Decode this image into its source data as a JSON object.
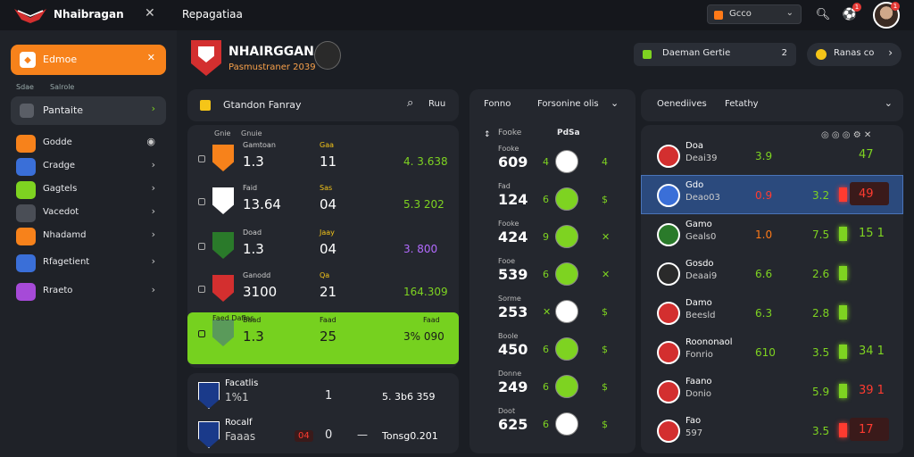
{
  "topbar": {
    "app_title": "Nhaibragan",
    "close_icon": "✕",
    "tab": "Repagatiaa",
    "select_value": "Gcco",
    "notif_badge": "1",
    "alert_badge": "1"
  },
  "sidebar": {
    "primary_label": "Edmoe",
    "section_col1": "Sdae",
    "section_col2": "Salrole",
    "active_label": "Pantaite",
    "items": [
      {
        "label": "Godde",
        "icon": "eye-icon",
        "color": "#f7821b"
      },
      {
        "label": "Cradge",
        "color": "#3a6fd8"
      },
      {
        "label": "Gagtels",
        "color": "#7ed321"
      },
      {
        "label": "Vacedot",
        "color": "#4a4e56"
      },
      {
        "label": "Nhadamd",
        "color": "#f7821b"
      },
      {
        "label": "Rfagetient",
        "color": "#3a6fd8"
      },
      {
        "label": "Rraeto",
        "color": "#a64ad8"
      }
    ]
  },
  "header": {
    "club_title": "NHAIRGGANA",
    "club_subtitle": "Pasmustraner 2039",
    "pill1": "Daeman Gertie",
    "pill1_num": "2",
    "pill2": "Ranas co"
  },
  "panel1": {
    "title": "Gtandon Fanray",
    "search_label": "Ruu",
    "head_col1": "Gnie",
    "head_col2": "Gnuie",
    "rows": [
      {
        "tag": "Gamtoan",
        "score": "1.3",
        "mid_label": "Gaa",
        "mid": "11",
        "right": "4. 3.638",
        "right_color": "#7ed321",
        "cr1": "#f7821b",
        "cr2": "#111"
      },
      {
        "tag": "Faid",
        "score": "13.64",
        "mid_label": "Sas",
        "mid": "04",
        "right": "5.3 202",
        "right_color": "#7ed321",
        "cr1": "#fff",
        "cr2": "#111"
      },
      {
        "tag": "Doad",
        "score": "1.3",
        "mid_label": "Jaay",
        "mid": "04",
        "right": "3. 800",
        "right_color": "#b36bff",
        "cr1": "#2a7a2a",
        "cr2": "#111"
      },
      {
        "tag": "Ganodd",
        "score": "3100",
        "mid_label": "Qa",
        "mid": "21",
        "right": "164.309",
        "right_color": "#7ed321",
        "cr1": "#d32f2f",
        "cr2": "#111"
      },
      {
        "tag": "Baad",
        "score": "1.3",
        "mid_label": "Faad",
        "mid": "25",
        "right": "3% 090",
        "right_color": "#1a1a1a",
        "cr1": "#5a9a5a",
        "cr2": "#111",
        "head": "Faed Daflas",
        "head_right": "Faad"
      },
      {
        "tag": "Facatlis",
        "score": "1%1",
        "mid_label": "",
        "mid": "1",
        "right": "5. 3b6 359",
        "right_color": "#e8e9ec",
        "cr1": "#fff",
        "cr2": "#1a3a8a"
      },
      {
        "tag": "Rocalf",
        "score": "Faaas",
        "mid_label": "",
        "mid": "0",
        "right": "Tonsg0.201",
        "right_color": "#e8e9ec",
        "cr1": "#fff",
        "cr2": "#1a3a8a",
        "red_tag": "04",
        "minus": "—"
      }
    ]
  },
  "panel2": {
    "title1": "Fonno",
    "title2": "Forsonine olis",
    "head_col1": "Fooke",
    "head_col2": "PdSa",
    "rows": [
      {
        "label": "Fooke",
        "value": "609",
        "n": "4",
        "pre": "4",
        "icon": "✕",
        "ball": "#fff"
      },
      {
        "label": "Fad",
        "value": "124",
        "n": "6",
        "pre": "$",
        "icon": "$",
        "ball": "#7ed321"
      },
      {
        "label": "Fooke",
        "value": "424",
        "n": "9",
        "pre": "✕",
        "icon": "◎",
        "ball": "#7ed321"
      },
      {
        "label": "Fooe",
        "value": "539",
        "n": "6",
        "pre": "✕",
        "icon": "◎",
        "ball": "#7ed321"
      },
      {
        "label": "Sorme",
        "value": "253",
        "n": "✕",
        "pre": "$",
        "icon": "◎",
        "ball": "#fff"
      },
      {
        "label": "Boole",
        "value": "450",
        "n": "6",
        "pre": "$",
        "icon": "▮",
        "ball": "#7ed321"
      },
      {
        "label": "Donne",
        "value": "249",
        "n": "6",
        "pre": "$",
        "icon": "▮",
        "ball": "#7ed321"
      },
      {
        "label": "Doot",
        "value": "625",
        "n": "6",
        "pre": "$",
        "icon": "▮",
        "ball": "#fff"
      }
    ]
  },
  "panel3": {
    "title1": "Oenediives",
    "title2": "Fetathy",
    "rows": [
      {
        "name": "Doa",
        "sub": "Deai39",
        "a": "3.9",
        "b": "",
        "c": "47",
        "cr": "#d32f2f"
      },
      {
        "name": "Gdo",
        "sub": "Deao03",
        "a": "0.9",
        "b": "3.2",
        "c": "49",
        "cr": "#3a6fd8"
      },
      {
        "name": "Gamo",
        "sub": "Geals0",
        "a": "1.0",
        "b": "7.5",
        "c": "15 1",
        "cr": "#2a7a2a"
      },
      {
        "name": "Gosdo",
        "sub": "Deaai9",
        "a": "6.6",
        "b": "2.6",
        "c": "",
        "cr": "#2a2a2a"
      },
      {
        "name": "Damo",
        "sub": "Beesld",
        "a": "6.3",
        "b": "2.8",
        "c": "",
        "cr": "#d32f2f"
      },
      {
        "name": "Roononaol",
        "sub": "Fonrio",
        "a": "610",
        "b": "3.5",
        "c": "34 1",
        "cr": "#d32f2f"
      },
      {
        "name": "Faano",
        "sub": "Donio",
        "a": "",
        "b": "5.9",
        "c": "39 1",
        "cr": "#d32f2f"
      },
      {
        "name": "Fao",
        "sub": "597",
        "a": "",
        "b": "3.5",
        "c": "17",
        "cr": "#d32f2f"
      }
    ]
  }
}
